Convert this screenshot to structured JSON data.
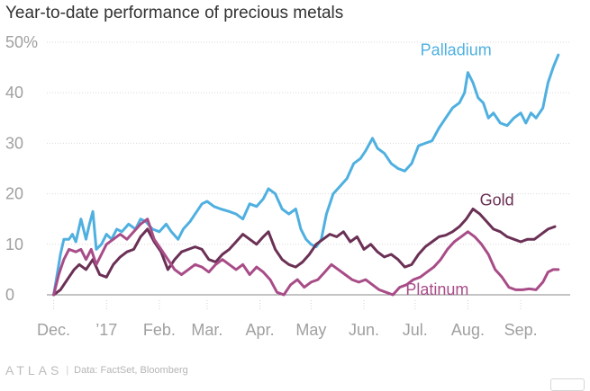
{
  "chart_data": {
    "type": "line",
    "title": "Year-to-date performance of precious metals",
    "xlabel": "",
    "ylabel": "",
    "ylim": [
      0,
      50
    ],
    "yticks": [
      {
        "value": 0,
        "label": "0"
      },
      {
        "value": 10,
        "label": "10"
      },
      {
        "value": 20,
        "label": "20"
      },
      {
        "value": 30,
        "label": "30"
      },
      {
        "value": 40,
        "label": "40"
      },
      {
        "value": 50,
        "label": "50%"
      }
    ],
    "xlim": [
      "2016-11-27",
      "2017-09-30"
    ],
    "xticks": [
      {
        "date": "2016-12-01",
        "label": "Dec."
      },
      {
        "date": "2017-01-01",
        "label": "’17"
      },
      {
        "date": "2017-02-01",
        "label": "Feb."
      },
      {
        "date": "2017-03-01",
        "label": "Mar."
      },
      {
        "date": "2017-04-01",
        "label": "Apr."
      },
      {
        "date": "2017-05-01",
        "label": "May"
      },
      {
        "date": "2017-06-01",
        "label": "Jun."
      },
      {
        "date": "2017-07-01",
        "label": "Jul."
      },
      {
        "date": "2017-08-01",
        "label": "Aug."
      },
      {
        "date": "2017-09-01",
        "label": "Sep."
      }
    ],
    "grid": "horizontal",
    "series": [
      {
        "name": "Palladium",
        "color": "#4fb0e0",
        "label_anchor": {
          "date": "2017-07-25",
          "value": 48.5
        },
        "points": [
          [
            "2016-12-01",
            0
          ],
          [
            "2016-12-03",
            4
          ],
          [
            "2016-12-05",
            8
          ],
          [
            "2016-12-07",
            11
          ],
          [
            "2016-12-10",
            11
          ],
          [
            "2016-12-12",
            12
          ],
          [
            "2016-12-14",
            10.5
          ],
          [
            "2016-12-17",
            15
          ],
          [
            "2016-12-20",
            11
          ],
          [
            "2016-12-22",
            14
          ],
          [
            "2016-12-24",
            16.5
          ],
          [
            "2016-12-26",
            9
          ],
          [
            "2016-12-29",
            10
          ],
          [
            "2017-01-01",
            12
          ],
          [
            "2017-01-04",
            11
          ],
          [
            "2017-01-07",
            13
          ],
          [
            "2017-01-10",
            12.5
          ],
          [
            "2017-01-14",
            14
          ],
          [
            "2017-01-18",
            13
          ],
          [
            "2017-01-21",
            15
          ],
          [
            "2017-01-24",
            14.5
          ],
          [
            "2017-01-28",
            13
          ],
          [
            "2017-02-01",
            12.5
          ],
          [
            "2017-02-05",
            14
          ],
          [
            "2017-02-08",
            12.5
          ],
          [
            "2017-02-12",
            11
          ],
          [
            "2017-02-15",
            13
          ],
          [
            "2017-02-19",
            14.5
          ],
          [
            "2017-02-22",
            16
          ],
          [
            "2017-02-26",
            18
          ],
          [
            "2017-03-01",
            18.5
          ],
          [
            "2017-03-05",
            17.5
          ],
          [
            "2017-03-09",
            17
          ],
          [
            "2017-03-14",
            16.5
          ],
          [
            "2017-03-18",
            16
          ],
          [
            "2017-03-22",
            15
          ],
          [
            "2017-03-26",
            18
          ],
          [
            "2017-03-30",
            17.5
          ],
          [
            "2017-04-03",
            19
          ],
          [
            "2017-04-06",
            21
          ],
          [
            "2017-04-10",
            20
          ],
          [
            "2017-04-14",
            17
          ],
          [
            "2017-04-18",
            16
          ],
          [
            "2017-04-22",
            17
          ],
          [
            "2017-04-25",
            13
          ],
          [
            "2017-04-28",
            11
          ],
          [
            "2017-05-01",
            10
          ],
          [
            "2017-05-04",
            9.5
          ],
          [
            "2017-05-07",
            11
          ],
          [
            "2017-05-10",
            16
          ],
          [
            "2017-05-14",
            20
          ],
          [
            "2017-05-18",
            21.5
          ],
          [
            "2017-05-22",
            23
          ],
          [
            "2017-05-26",
            26
          ],
          [
            "2017-05-30",
            27
          ],
          [
            "2017-06-02",
            28.5
          ],
          [
            "2017-06-06",
            31
          ],
          [
            "2017-06-09",
            29
          ],
          [
            "2017-06-13",
            28
          ],
          [
            "2017-06-17",
            26
          ],
          [
            "2017-06-21",
            25
          ],
          [
            "2017-06-25",
            24.5
          ],
          [
            "2017-06-29",
            26
          ],
          [
            "2017-07-03",
            29.5
          ],
          [
            "2017-07-07",
            30
          ],
          [
            "2017-07-11",
            30.5
          ],
          [
            "2017-07-15",
            33
          ],
          [
            "2017-07-19",
            35
          ],
          [
            "2017-07-23",
            37
          ],
          [
            "2017-07-27",
            38
          ],
          [
            "2017-07-30",
            40
          ],
          [
            "2017-08-01",
            44
          ],
          [
            "2017-08-04",
            42
          ],
          [
            "2017-08-07",
            39
          ],
          [
            "2017-08-10",
            38
          ],
          [
            "2017-08-13",
            35
          ],
          [
            "2017-08-16",
            36
          ],
          [
            "2017-08-20",
            34
          ],
          [
            "2017-08-24",
            33.5
          ],
          [
            "2017-08-28",
            35
          ],
          [
            "2017-09-01",
            36
          ],
          [
            "2017-09-04",
            34
          ],
          [
            "2017-09-07",
            36
          ],
          [
            "2017-09-10",
            35
          ],
          [
            "2017-09-14",
            37
          ],
          [
            "2017-09-17",
            42
          ],
          [
            "2017-09-20",
            45
          ],
          [
            "2017-09-23",
            47.5
          ]
        ]
      },
      {
        "name": "Gold",
        "color": "#6b3055",
        "label_anchor": {
          "date": "2017-08-18",
          "value": 18.8
        },
        "points": [
          [
            "2016-12-01",
            0
          ],
          [
            "2016-12-05",
            1
          ],
          [
            "2016-12-09",
            3
          ],
          [
            "2016-12-13",
            5
          ],
          [
            "2016-12-16",
            6
          ],
          [
            "2016-12-20",
            5
          ],
          [
            "2016-12-24",
            7
          ],
          [
            "2016-12-28",
            4
          ],
          [
            "2017-01-01",
            3.5
          ],
          [
            "2017-01-05",
            6
          ],
          [
            "2017-01-09",
            7.5
          ],
          [
            "2017-01-13",
            8.5
          ],
          [
            "2017-01-17",
            9
          ],
          [
            "2017-01-21",
            11.5
          ],
          [
            "2017-01-25",
            13
          ],
          [
            "2017-01-29",
            10.5
          ],
          [
            "2017-02-02",
            8.5
          ],
          [
            "2017-02-06",
            5
          ],
          [
            "2017-02-10",
            7
          ],
          [
            "2017-02-14",
            8.5
          ],
          [
            "2017-02-18",
            9
          ],
          [
            "2017-02-22",
            9.5
          ],
          [
            "2017-02-26",
            9
          ],
          [
            "2017-03-02",
            7
          ],
          [
            "2017-03-06",
            6.5
          ],
          [
            "2017-03-10",
            8
          ],
          [
            "2017-03-14",
            9
          ],
          [
            "2017-03-18",
            10.5
          ],
          [
            "2017-03-22",
            12
          ],
          [
            "2017-03-26",
            11
          ],
          [
            "2017-03-30",
            10
          ],
          [
            "2017-04-03",
            11.5
          ],
          [
            "2017-04-06",
            12.5
          ],
          [
            "2017-04-10",
            9
          ],
          [
            "2017-04-14",
            7
          ],
          [
            "2017-04-18",
            6
          ],
          [
            "2017-04-22",
            5.5
          ],
          [
            "2017-04-26",
            6.5
          ],
          [
            "2017-04-30",
            8
          ],
          [
            "2017-05-04",
            10
          ],
          [
            "2017-05-08",
            11
          ],
          [
            "2017-05-12",
            12
          ],
          [
            "2017-05-16",
            11.5
          ],
          [
            "2017-05-20",
            12.5
          ],
          [
            "2017-05-24",
            10.5
          ],
          [
            "2017-05-28",
            11.5
          ],
          [
            "2017-06-01",
            9
          ],
          [
            "2017-06-05",
            10
          ],
          [
            "2017-06-09",
            8.5
          ],
          [
            "2017-06-13",
            7.5
          ],
          [
            "2017-06-17",
            8
          ],
          [
            "2017-06-21",
            7
          ],
          [
            "2017-06-25",
            5.5
          ],
          [
            "2017-06-29",
            6
          ],
          [
            "2017-07-03",
            8
          ],
          [
            "2017-07-07",
            9.5
          ],
          [
            "2017-07-11",
            10.5
          ],
          [
            "2017-07-15",
            11.5
          ],
          [
            "2017-07-19",
            11.8
          ],
          [
            "2017-07-23",
            12.5
          ],
          [
            "2017-07-27",
            13.5
          ],
          [
            "2017-07-31",
            15
          ],
          [
            "2017-08-04",
            17
          ],
          [
            "2017-08-08",
            16
          ],
          [
            "2017-08-12",
            14.5
          ],
          [
            "2017-08-16",
            13
          ],
          [
            "2017-08-20",
            12.5
          ],
          [
            "2017-08-24",
            11.5
          ],
          [
            "2017-08-28",
            11
          ],
          [
            "2017-09-01",
            10.5
          ],
          [
            "2017-09-05",
            11
          ],
          [
            "2017-09-09",
            11
          ],
          [
            "2017-09-13",
            12
          ],
          [
            "2017-09-17",
            13
          ],
          [
            "2017-09-21",
            13.5
          ]
        ]
      },
      {
        "name": "Platinum",
        "color": "#a84c88",
        "label_anchor": {
          "date": "2017-07-14",
          "value": 1.1
        },
        "points": [
          [
            "2016-12-01",
            0
          ],
          [
            "2016-12-04",
            4
          ],
          [
            "2016-12-07",
            7
          ],
          [
            "2016-12-10",
            9
          ],
          [
            "2016-12-14",
            8.5
          ],
          [
            "2016-12-17",
            9
          ],
          [
            "2016-12-20",
            7
          ],
          [
            "2016-12-23",
            9
          ],
          [
            "2016-12-26",
            6
          ],
          [
            "2016-12-29",
            8
          ],
          [
            "2017-01-01",
            10
          ],
          [
            "2017-01-05",
            11
          ],
          [
            "2017-01-09",
            12
          ],
          [
            "2017-01-13",
            11
          ],
          [
            "2017-01-17",
            12.5
          ],
          [
            "2017-01-21",
            14
          ],
          [
            "2017-01-25",
            15
          ],
          [
            "2017-01-29",
            11
          ],
          [
            "2017-02-02",
            9
          ],
          [
            "2017-02-06",
            7
          ],
          [
            "2017-02-10",
            5
          ],
          [
            "2017-02-14",
            4
          ],
          [
            "2017-02-18",
            5
          ],
          [
            "2017-02-22",
            6
          ],
          [
            "2017-02-26",
            5.5
          ],
          [
            "2017-03-02",
            4.5
          ],
          [
            "2017-03-06",
            6
          ],
          [
            "2017-03-10",
            7
          ],
          [
            "2017-03-14",
            6
          ],
          [
            "2017-03-18",
            5
          ],
          [
            "2017-03-22",
            6
          ],
          [
            "2017-03-26",
            4
          ],
          [
            "2017-03-30",
            5.5
          ],
          [
            "2017-04-03",
            4.5
          ],
          [
            "2017-04-07",
            3
          ],
          [
            "2017-04-11",
            0.5
          ],
          [
            "2017-04-15",
            0
          ],
          [
            "2017-04-19",
            2
          ],
          [
            "2017-04-23",
            3
          ],
          [
            "2017-04-27",
            1.5
          ],
          [
            "2017-05-01",
            2.5
          ],
          [
            "2017-05-05",
            3
          ],
          [
            "2017-05-09",
            4.5
          ],
          [
            "2017-05-13",
            6
          ],
          [
            "2017-05-17",
            5
          ],
          [
            "2017-05-21",
            4
          ],
          [
            "2017-05-25",
            3
          ],
          [
            "2017-05-29",
            2.5
          ],
          [
            "2017-06-02",
            3
          ],
          [
            "2017-06-06",
            2
          ],
          [
            "2017-06-10",
            1
          ],
          [
            "2017-06-14",
            0.5
          ],
          [
            "2017-06-18",
            0
          ],
          [
            "2017-06-22",
            1.5
          ],
          [
            "2017-06-26",
            2
          ],
          [
            "2017-06-30",
            3
          ],
          [
            "2017-07-04",
            3.5
          ],
          [
            "2017-07-08",
            4.5
          ],
          [
            "2017-07-12",
            5.5
          ],
          [
            "2017-07-16",
            7
          ],
          [
            "2017-07-20",
            9
          ],
          [
            "2017-07-24",
            10.5
          ],
          [
            "2017-07-28",
            11.5
          ],
          [
            "2017-08-01",
            12.5
          ],
          [
            "2017-08-05",
            11.5
          ],
          [
            "2017-08-09",
            10
          ],
          [
            "2017-08-13",
            8
          ],
          [
            "2017-08-17",
            5
          ],
          [
            "2017-08-21",
            3.5
          ],
          [
            "2017-08-25",
            1.5
          ],
          [
            "2017-08-29",
            1
          ],
          [
            "2017-09-02",
            1
          ],
          [
            "2017-09-06",
            1.2
          ],
          [
            "2017-09-10",
            1
          ],
          [
            "2017-09-14",
            2.5
          ],
          [
            "2017-09-17",
            4.5
          ],
          [
            "2017-09-20",
            5
          ],
          [
            "2017-09-23",
            5
          ]
        ]
      }
    ]
  },
  "footer": {
    "logo": "ATLAS",
    "source": "Data: FactSet, Bloomberg"
  }
}
